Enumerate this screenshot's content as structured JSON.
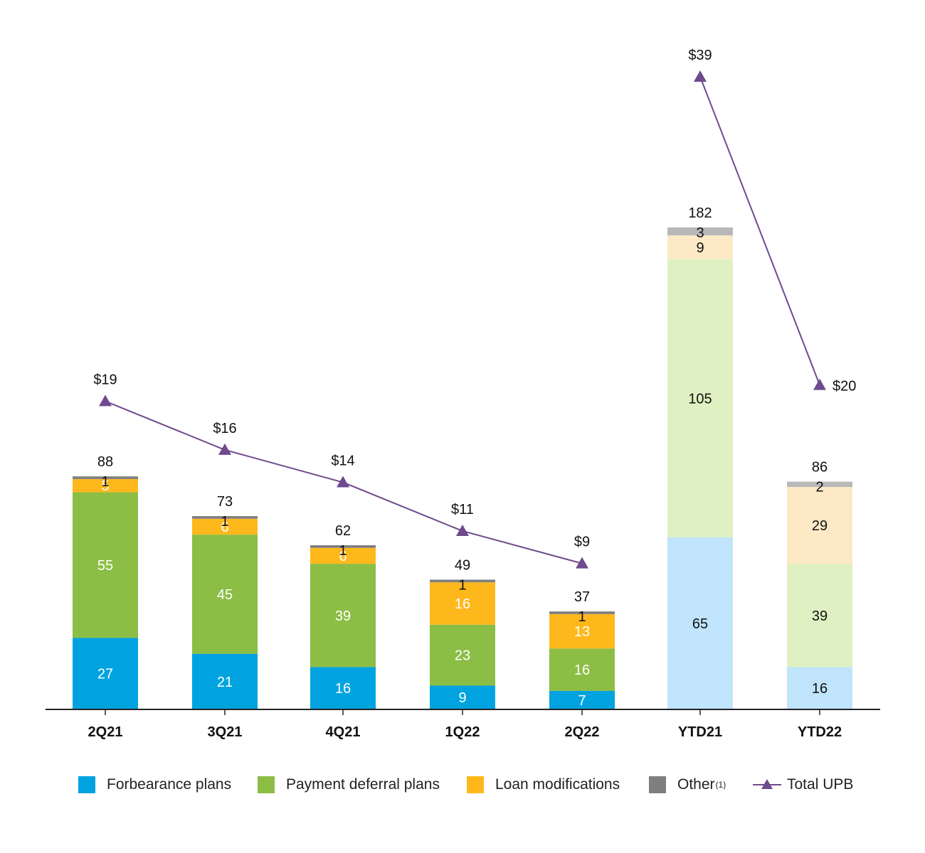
{
  "chart_data": {
    "type": "bar",
    "stacked": true,
    "categories": [
      "2Q21",
      "3Q21",
      "4Q21",
      "1Q22",
      "2Q22",
      "YTD21",
      "YTD22"
    ],
    "series": [
      {
        "name": "Forbearance plans",
        "values": [
          27,
          21,
          16,
          9,
          7,
          65,
          16
        ],
        "color": "#00a3e0",
        "ytd_color": "#bfe4fb"
      },
      {
        "name": "Payment deferral plans",
        "values": [
          55,
          45,
          39,
          23,
          16,
          105,
          39
        ],
        "color": "#8cbd45",
        "ytd_color": "#dff1c2"
      },
      {
        "name": "Loan modifications",
        "values": [
          5,
          6,
          6,
          16,
          13,
          9,
          29
        ],
        "color": "#ffb81c",
        "ytd_color": "#fde9c5"
      },
      {
        "name": "Other",
        "name_sup": "(1)",
        "values": [
          1,
          1,
          1,
          1,
          1,
          3,
          2
        ],
        "color": "#7f7f7f",
        "ytd_color": "#b8b8b8"
      }
    ],
    "totals": [
      88,
      73,
      62,
      49,
      37,
      182,
      86
    ],
    "line_series": {
      "name": "Total UPB",
      "values": [
        19,
        16,
        14,
        11,
        9,
        39,
        20
      ],
      "labels": [
        "$19",
        "$16",
        "$14",
        "$11",
        "$9",
        "$39",
        "$20"
      ],
      "segments": [
        [
          0,
          1,
          2,
          3,
          4
        ],
        [
          5,
          6
        ]
      ],
      "color": "#6f4a8e"
    },
    "ylim": [
      0,
      182
    ],
    "upb_ylim": [
      0,
      39
    ],
    "grid": false,
    "legend_position": "bottom"
  }
}
